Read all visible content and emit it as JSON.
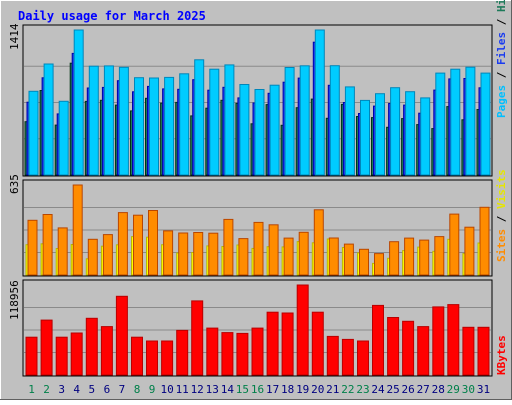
{
  "chart_data": {
    "type": "bar",
    "title": "Daily usage for March 2025",
    "days": [
      "1",
      "2",
      "3",
      "4",
      "5",
      "6",
      "7",
      "8",
      "9",
      "10",
      "11",
      "12",
      "13",
      "14",
      "15",
      "16",
      "17",
      "18",
      "19",
      "20",
      "21",
      "22",
      "23",
      "24",
      "25",
      "26",
      "27",
      "28",
      "29",
      "30",
      "31"
    ],
    "weekend_days": [
      "1",
      "2",
      "8",
      "9",
      "15",
      "16",
      "22",
      "23",
      "29",
      "30"
    ],
    "panels": [
      {
        "id": "hits",
        "ymax_label": "1414",
        "ylim": [
          0,
          1414
        ],
        "legend": [
          "Pages",
          "/",
          "Files",
          "/",
          "Hits"
        ],
        "series": [
          {
            "name": "Hits",
            "values": [
              816,
              1082,
              719,
              1414,
              1061,
              1064,
              1050,
              949,
              946,
              952,
              987,
              1123,
              1032,
              1074,
              883,
              834,
              876,
              1048,
              1065,
              1414,
              1066,
              859,
              727,
              793,
              851,
              812,
              752,
              994,
              1032,
              1051,
              994
            ]
          },
          {
            "name": "Files",
            "values": [
              710,
              948,
              596,
              1186,
              848,
              854,
              920,
              811,
              864,
              840,
              836,
              929,
              827,
              855,
              752,
              702,
              797,
              905,
              945,
              1295,
              875,
              707,
              600,
              672,
              697,
              682,
              603,
              828,
              937,
              941,
              850
            ]
          },
          {
            "name": "Pages",
            "values": [
              520,
              824,
              487,
              1090,
              718,
              728,
              682,
              625,
              748,
              700,
              708,
              576,
              651,
              728,
              698,
              499,
              687,
              485,
              656,
              740,
              553,
              688,
              570,
              560,
              465,
              550,
              491,
              452,
              667,
              538,
              639
            ]
          }
        ],
        "colors": [
          "#00ccff",
          "#1a3cf0",
          "#1e7a5a"
        ]
      },
      {
        "id": "visits",
        "ymax_label": "635",
        "ylim": [
          0,
          635
        ],
        "legend": [
          "Sites",
          "/",
          "Visits"
        ],
        "series": [
          {
            "name": "Visits",
            "values": [
              386,
              427,
              332,
              635,
              252,
              285,
              440,
              422,
              455,
              311,
              296,
              300,
              295,
              392,
              257,
              371,
              354,
              260,
              301,
              460,
              261,
              218,
              181,
              151,
              235,
              260,
              246,
              271,
              430,
              337,
              478
            ]
          },
          {
            "name": "Sites",
            "values": [
              214,
              220,
              187,
              215,
              114,
              203,
              213,
              271,
              267,
              214,
              155,
              159,
              205,
              201,
              212,
              188,
              200,
              198,
              236,
              227,
              254,
              194,
              156,
              82,
              118,
              172,
              197,
              167,
              252,
              151,
              226
            ]
          }
        ],
        "colors": [
          "#ff8c00",
          "#ffff00"
        ]
      },
      {
        "id": "kbytes",
        "ymax_label": "118956",
        "ylim": [
          0,
          118956
        ],
        "legend": [
          "KBytes"
        ],
        "series": [
          {
            "name": "KBytes",
            "values": [
              50000,
              72500,
              50000,
              55500,
              75000,
              64000,
              104000,
              50000,
              45000,
              45000,
              59000,
              98000,
              62000,
              56000,
              55000,
              62000,
              83000,
              82000,
              118956,
              83000,
              51000,
              47000,
              45000,
              92000,
              76000,
              71000,
              64000,
              90000,
              93000,
              63000,
              63000
            ]
          }
        ],
        "colors": [
          "#ff0000"
        ]
      }
    ]
  }
}
